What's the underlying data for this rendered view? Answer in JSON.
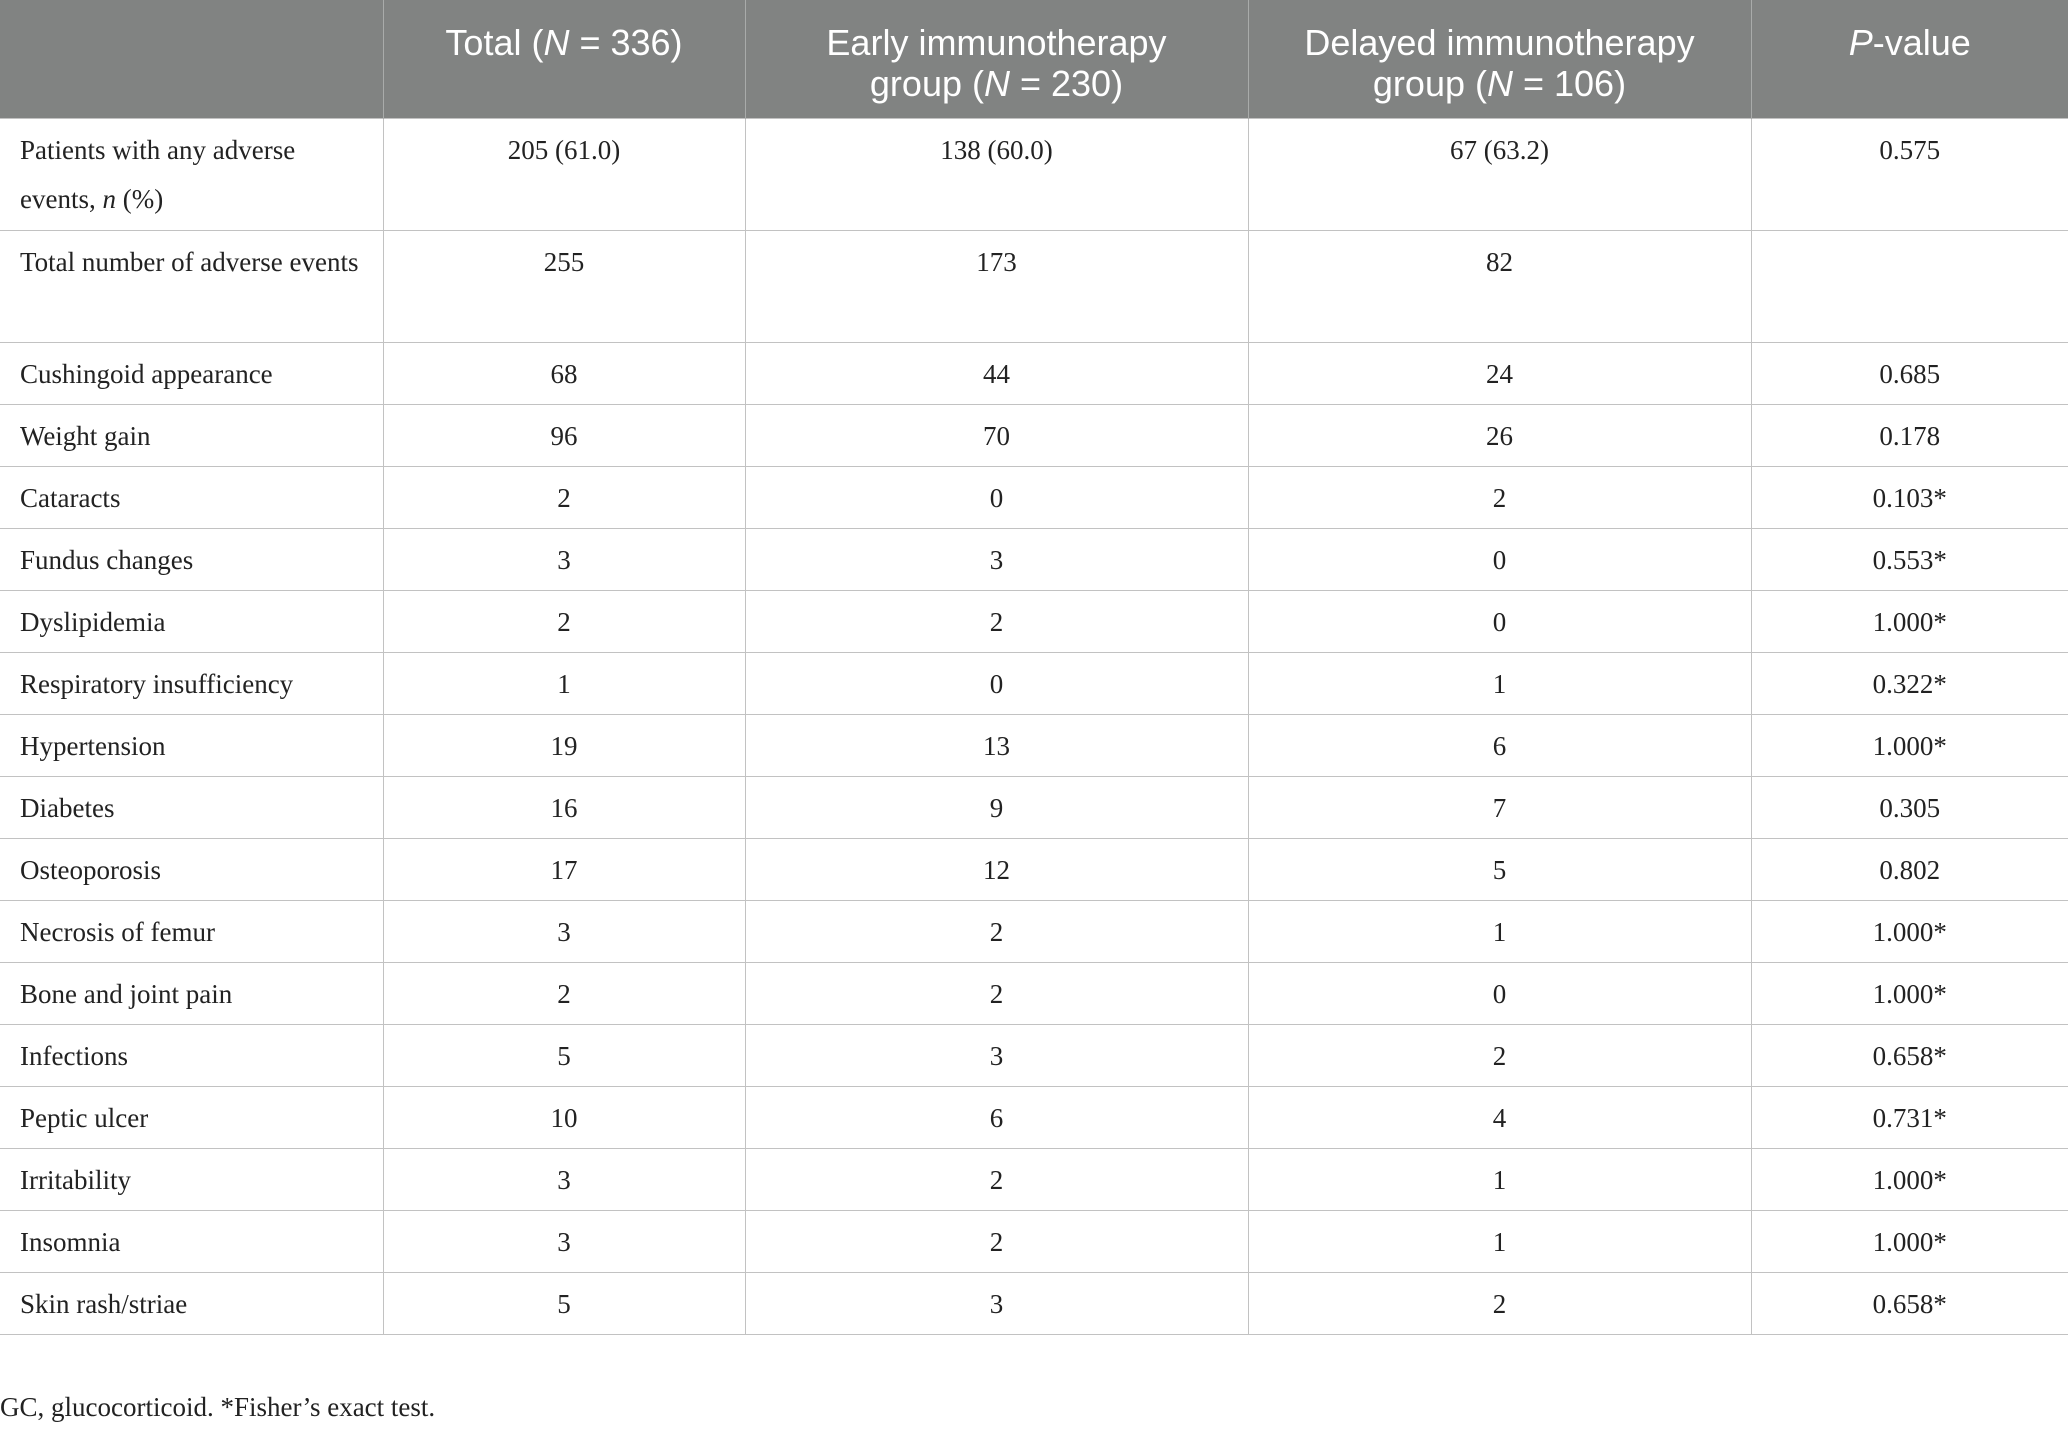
{
  "table": {
    "headers": [
      {
        "pre": "",
        "italic": "",
        "post": ""
      },
      {
        "pre": "Total (",
        "italic": "N",
        "post": " = 336)"
      },
      {
        "line1": "Early immunotherapy",
        "pre": "group (",
        "italic": "N",
        "post": " = 230)"
      },
      {
        "line1": "Delayed immunotherapy",
        "pre": "group (",
        "italic": "N",
        "post": " = 106)"
      },
      {
        "pre": "",
        "italic": "P",
        "post": "-value"
      }
    ],
    "rows": [
      {
        "label_pre": "Patients with any adverse events, ",
        "label_italic": "n",
        "label_post": " (%)",
        "total": "205 (61.0)",
        "early": "138 (60.0)",
        "delayed": "67 (63.2)",
        "p": "0.575"
      },
      {
        "label_pre": "Total number of adverse events",
        "label_italic": "",
        "label_post": "",
        "total": "255",
        "early": "173",
        "delayed": "82",
        "p": ""
      },
      {
        "label_pre": "Cushingoid appearance",
        "label_italic": "",
        "label_post": "",
        "total": "68",
        "early": "44",
        "delayed": "24",
        "p": "0.685"
      },
      {
        "label_pre": "Weight gain",
        "label_italic": "",
        "label_post": "",
        "total": "96",
        "early": "70",
        "delayed": "26",
        "p": "0.178"
      },
      {
        "label_pre": "Cataracts",
        "label_italic": "",
        "label_post": "",
        "total": "2",
        "early": "0",
        "delayed": "2",
        "p": "0.103*"
      },
      {
        "label_pre": "Fundus changes",
        "label_italic": "",
        "label_post": "",
        "total": "3",
        "early": "3",
        "delayed": "0",
        "p": "0.553*"
      },
      {
        "label_pre": "Dyslipidemia",
        "label_italic": "",
        "label_post": "",
        "total": "2",
        "early": "2",
        "delayed": "0",
        "p": "1.000*"
      },
      {
        "label_pre": "Respiratory insufficiency",
        "label_italic": "",
        "label_post": "",
        "total": "1",
        "early": "0",
        "delayed": "1",
        "p": "0.322*"
      },
      {
        "label_pre": "Hypertension",
        "label_italic": "",
        "label_post": "",
        "total": "19",
        "early": "13",
        "delayed": "6",
        "p": "1.000*"
      },
      {
        "label_pre": "Diabetes",
        "label_italic": "",
        "label_post": "",
        "total": "16",
        "early": "9",
        "delayed": "7",
        "p": "0.305"
      },
      {
        "label_pre": "Osteoporosis",
        "label_italic": "",
        "label_post": "",
        "total": "17",
        "early": "12",
        "delayed": "5",
        "p": "0.802"
      },
      {
        "label_pre": "Necrosis of femur",
        "label_italic": "",
        "label_post": "",
        "total": "3",
        "early": "2",
        "delayed": "1",
        "p": "1.000*"
      },
      {
        "label_pre": "Bone and joint pain",
        "label_italic": "",
        "label_post": "",
        "total": "2",
        "early": "2",
        "delayed": "0",
        "p": "1.000*"
      },
      {
        "label_pre": "Infections",
        "label_italic": "",
        "label_post": "",
        "total": "5",
        "early": "3",
        "delayed": "2",
        "p": "0.658*"
      },
      {
        "label_pre": "Peptic ulcer",
        "label_italic": "",
        "label_post": "",
        "total": "10",
        "early": "6",
        "delayed": "4",
        "p": "0.731*"
      },
      {
        "label_pre": "Irritability",
        "label_italic": "",
        "label_post": "",
        "total": "3",
        "early": "2",
        "delayed": "1",
        "p": "1.000*"
      },
      {
        "label_pre": "Insomnia",
        "label_italic": "",
        "label_post": "",
        "total": "3",
        "early": "2",
        "delayed": "1",
        "p": "1.000*"
      },
      {
        "label_pre": "Skin rash/striae",
        "label_italic": "",
        "label_post": "",
        "total": "5",
        "early": "3",
        "delayed": "2",
        "p": "0.658*"
      }
    ]
  },
  "footnote": "GC, glucocorticoid. *Fisher’s exact test.",
  "colors": {
    "header_bg": "#818382",
    "header_text": "#ffffff",
    "grid": "#c2c2c2",
    "body_text": "#222222"
  }
}
